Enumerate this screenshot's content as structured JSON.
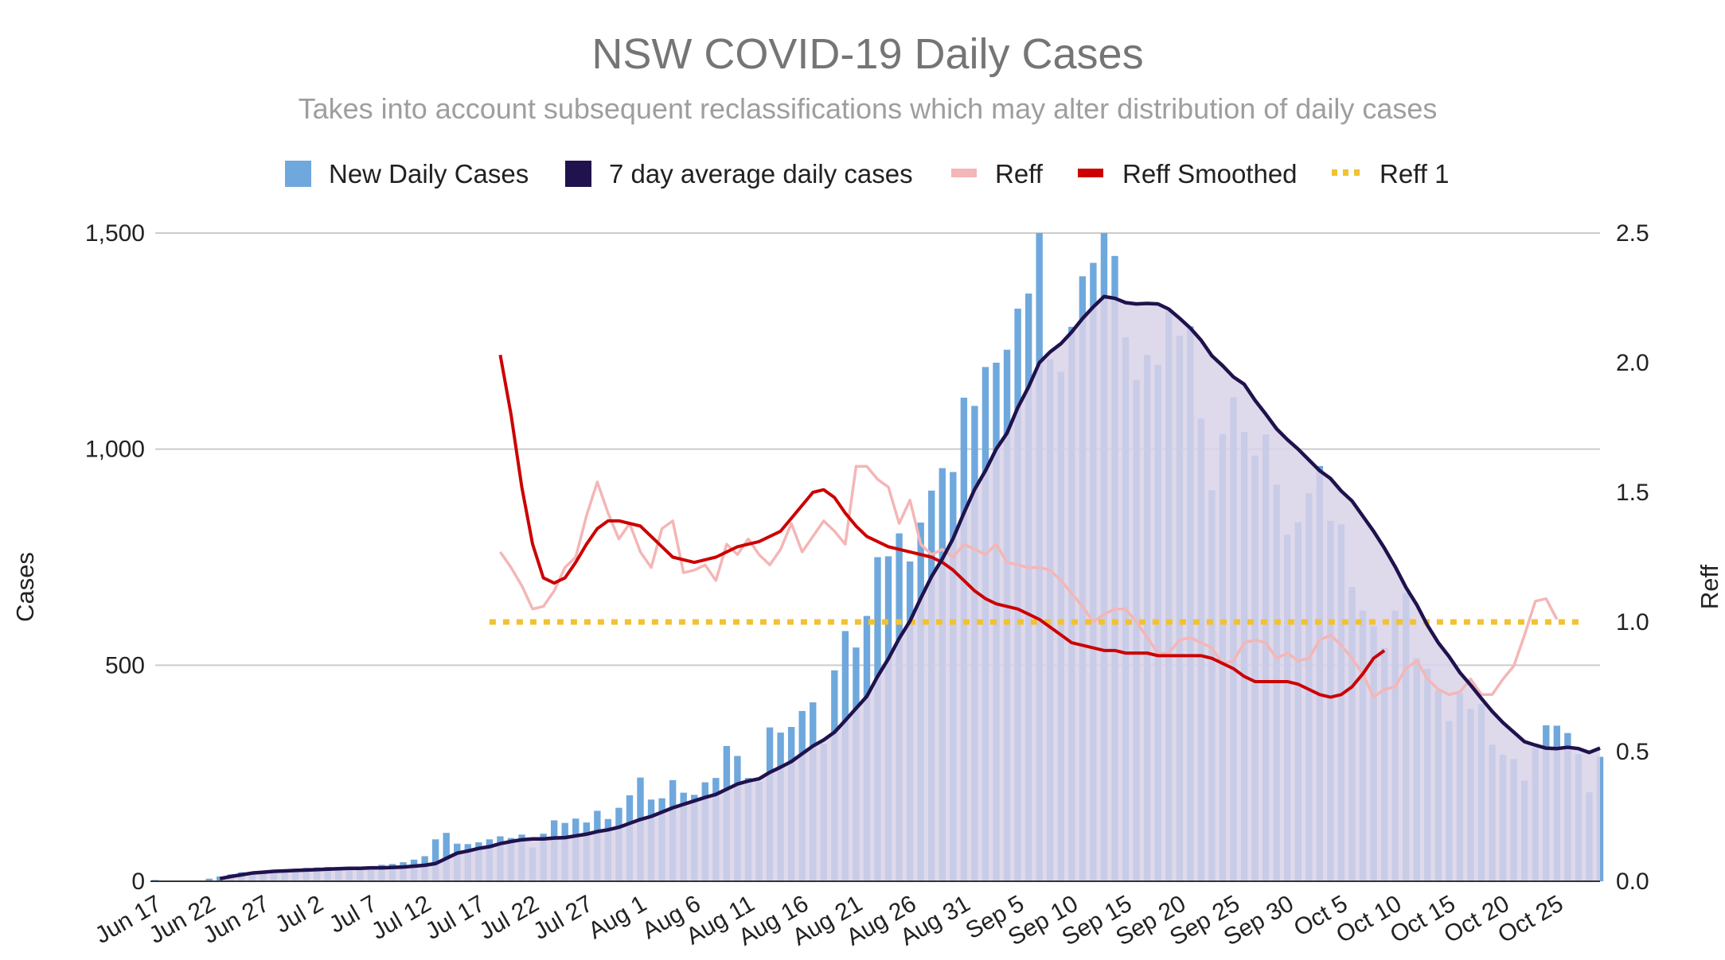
{
  "chart_data": {
    "type": "bar",
    "title": "NSW COVID-19 Daily Cases",
    "subtitle": "Takes into account subsequent reclassifications which may alter distribution of daily cases",
    "ylabel": "Cases",
    "y2label": "Reff",
    "ylim": [
      0,
      1500
    ],
    "y2lim": [
      0,
      2.5
    ],
    "yticks": [
      0,
      500,
      1000,
      1500
    ],
    "yticks_labels": [
      "0",
      "500",
      "1,000",
      "1,500"
    ],
    "y2ticks": [
      0,
      0.5,
      1,
      1.5,
      2,
      2.5
    ],
    "y2ticks_labels": [
      "0.0",
      "0.5",
      "1.0",
      "1.5",
      "2.0",
      "2.5"
    ],
    "grid": true,
    "legend_position": "top",
    "xtick_labels": [
      "Jun 17",
      "Jun 22",
      "Jun 27",
      "Jul 2",
      "Jul 7",
      "Jul 12",
      "Jul 17",
      "Jul 22",
      "Jul 27",
      "Aug 1",
      "Aug 6",
      "Aug 11",
      "Aug 16",
      "Aug 21",
      "Aug 26",
      "Aug 31",
      "Sep 5",
      "Sep 10",
      "Sep 15",
      "Sep 20",
      "Sep 25",
      "Sep 30",
      "Oct 5",
      "Oct 10",
      "Oct 15",
      "Oct 20",
      "Oct 25"
    ],
    "start_date": "Jun 17",
    "series": [
      {
        "name": "New Daily Cases",
        "kind": "bar",
        "axis": "left",
        "color": "#6fa8dc",
        "values": [
          3,
          0,
          0,
          0,
          0,
          6,
          11,
          16,
          21,
          22,
          24,
          25,
          27,
          29,
          31,
          32,
          33,
          30,
          31,
          32,
          34,
          38,
          40,
          44,
          50,
          58,
          97,
          112,
          87,
          86,
          90,
          97,
          104,
          100,
          108,
          78,
          110,
          141,
          135,
          145,
          136,
          163,
          144,
          170,
          199,
          240,
          189,
          192,
          234,
          205,
          200,
          229,
          239,
          313,
          290,
          239,
          230,
          356,
          344,
          357,
          394,
          414,
          318,
          488,
          579,
          541,
          614,
          750,
          752,
          805,
          740,
          830,
          904,
          956,
          947,
          1119,
          1100,
          1190,
          1200,
          1230,
          1325,
          1360,
          1500,
          1208,
          1179,
          1283,
          1400,
          1431,
          1500,
          1447,
          1259,
          1160,
          1218,
          1195,
          1320,
          1262,
          1284,
          1071,
          905,
          1035,
          1120,
          1040,
          985,
          1034,
          918,
          802,
          831,
          898,
          961,
          834,
          826,
          681,
          626,
          590,
          540,
          626,
          667,
          516,
          492,
          442,
          371,
          435,
          399,
          410,
          316,
          293,
          283,
          233,
          309,
          361,
          360,
          343,
          294,
          206,
          288
        ]
      },
      {
        "name": "7 day average daily cases",
        "kind": "line",
        "axis": "left",
        "color": "#20124d",
        "values": [
          null,
          null,
          null,
          null,
          null,
          null,
          6,
          11,
          15,
          19,
          21,
          23,
          24,
          25,
          26,
          27,
          28,
          29,
          30,
          30,
          31,
          31,
          32,
          33,
          35,
          37,
          41,
          53,
          65,
          70,
          76,
          80,
          87,
          92,
          96,
          98,
          98,
          100,
          101,
          105,
          109,
          115,
          119,
          125,
          134,
          143,
          150,
          160,
          170,
          178,
          186,
          194,
          201,
          213,
          225,
          232,
          237,
          252,
          264,
          277,
          295,
          313,
          327,
          345,
          372,
          400,
          428,
          474,
          515,
          562,
          602,
          655,
          705,
          746,
          793,
          852,
          907,
          950,
          1000,
          1037,
          1096,
          1144,
          1200,
          1225,
          1244,
          1271,
          1302,
          1329,
          1353,
          1349,
          1339,
          1336,
          1337,
          1336,
          1324,
          1303,
          1280,
          1252,
          1216,
          1193,
          1167,
          1150,
          1113,
          1081,
          1047,
          1022,
          1000,
          975,
          950,
          932,
          903,
          880,
          845,
          810,
          771,
          728,
          680,
          640,
          592,
          552,
          520,
          483,
          454,
          423,
          393,
          367,
          345,
          323,
          315,
          308,
          307,
          310,
          307,
          298,
          308
        ]
      },
      {
        "name": "Reff",
        "kind": "line",
        "axis": "right",
        "color": "#f4b6b6",
        "values": [
          null,
          null,
          null,
          null,
          null,
          null,
          null,
          null,
          null,
          null,
          null,
          null,
          null,
          null,
          null,
          null,
          null,
          null,
          null,
          null,
          null,
          null,
          null,
          null,
          null,
          null,
          null,
          null,
          null,
          null,
          null,
          null,
          1.27,
          1.21,
          1.14,
          1.05,
          1.06,
          1.12,
          1.21,
          1.25,
          1.41,
          1.54,
          1.42,
          1.32,
          1.38,
          1.27,
          1.21,
          1.36,
          1.39,
          1.19,
          1.2,
          1.22,
          1.16,
          1.3,
          1.26,
          1.32,
          1.26,
          1.22,
          1.28,
          1.38,
          1.27,
          1.33,
          1.39,
          1.35,
          1.3,
          1.6,
          1.6,
          1.55,
          1.52,
          1.38,
          1.47,
          1.3,
          1.26,
          1.28,
          1.25,
          1.3,
          1.28,
          1.26,
          1.3,
          1.23,
          1.22,
          1.21,
          1.21,
          1.2,
          1.16,
          1.11,
          1.06,
          1.0,
          1.03,
          1.05,
          1.05,
          1.0,
          0.94,
          0.88,
          0.88,
          0.93,
          0.94,
          0.92,
          0.9,
          0.84,
          0.85,
          0.92,
          0.93,
          0.92,
          0.86,
          0.88,
          0.85,
          0.86,
          0.93,
          0.95,
          0.91,
          0.86,
          0.8,
          0.71,
          0.74,
          0.75,
          0.82,
          0.85,
          0.78,
          0.74,
          0.72,
          0.73,
          0.78,
          0.72,
          0.72,
          0.78,
          0.83,
          0.95,
          1.08,
          1.09,
          1.01
        ]
      },
      {
        "name": "Reff Smoothed",
        "kind": "line",
        "axis": "right",
        "color": "#cc0000",
        "values": [
          null,
          null,
          null,
          null,
          null,
          null,
          null,
          null,
          null,
          null,
          null,
          null,
          null,
          null,
          null,
          null,
          null,
          null,
          null,
          null,
          null,
          null,
          null,
          null,
          null,
          null,
          null,
          null,
          null,
          null,
          null,
          null,
          2.03,
          1.8,
          1.52,
          1.3,
          1.17,
          1.15,
          1.17,
          1.23,
          1.3,
          1.36,
          1.39,
          1.39,
          1.38,
          1.37,
          1.33,
          1.29,
          1.25,
          1.24,
          1.23,
          1.24,
          1.25,
          1.27,
          1.29,
          1.3,
          1.31,
          1.33,
          1.35,
          1.4,
          1.45,
          1.5,
          1.51,
          1.48,
          1.42,
          1.37,
          1.33,
          1.31,
          1.29,
          1.28,
          1.27,
          1.26,
          1.25,
          1.23,
          1.2,
          1.16,
          1.12,
          1.09,
          1.07,
          1.06,
          1.05,
          1.03,
          1.01,
          0.98,
          0.95,
          0.92,
          0.91,
          0.9,
          0.89,
          0.89,
          0.88,
          0.88,
          0.88,
          0.87,
          0.87,
          0.87,
          0.87,
          0.87,
          0.86,
          0.84,
          0.82,
          0.79,
          0.77,
          0.77,
          0.77,
          0.77,
          0.76,
          0.74,
          0.72,
          0.71,
          0.72,
          0.75,
          0.8,
          0.86,
          0.89
        ]
      },
      {
        "name": "Reff 1",
        "kind": "line",
        "axis": "right",
        "color": "#f1c232",
        "dashed": true,
        "values": [
          null,
          null,
          null,
          null,
          null,
          null,
          null,
          null,
          null,
          null,
          null,
          null,
          null,
          null,
          null,
          null,
          null,
          null,
          null,
          null,
          null,
          null,
          null,
          null,
          null,
          null,
          null,
          null,
          null,
          null,
          null,
          1,
          1,
          1,
          1,
          1,
          1,
          1,
          1,
          1,
          1,
          1,
          1,
          1,
          1,
          1,
          1,
          1,
          1,
          1,
          1,
          1,
          1,
          1,
          1,
          1,
          1,
          1,
          1,
          1,
          1,
          1,
          1,
          1,
          1,
          1,
          1,
          1,
          1,
          1,
          1,
          1,
          1,
          1,
          1,
          1,
          1,
          1,
          1,
          1,
          1,
          1,
          1,
          1,
          1,
          1,
          1,
          1,
          1,
          1,
          1,
          1,
          1,
          1,
          1,
          1,
          1,
          1,
          1,
          1,
          1,
          1,
          1,
          1,
          1,
          1,
          1,
          1,
          1,
          1,
          1,
          1,
          1,
          1,
          1,
          1,
          1,
          1,
          1,
          1,
          1,
          1,
          1,
          1,
          1,
          1,
          1,
          1,
          1,
          1,
          1,
          1,
          1
        ]
      }
    ]
  }
}
